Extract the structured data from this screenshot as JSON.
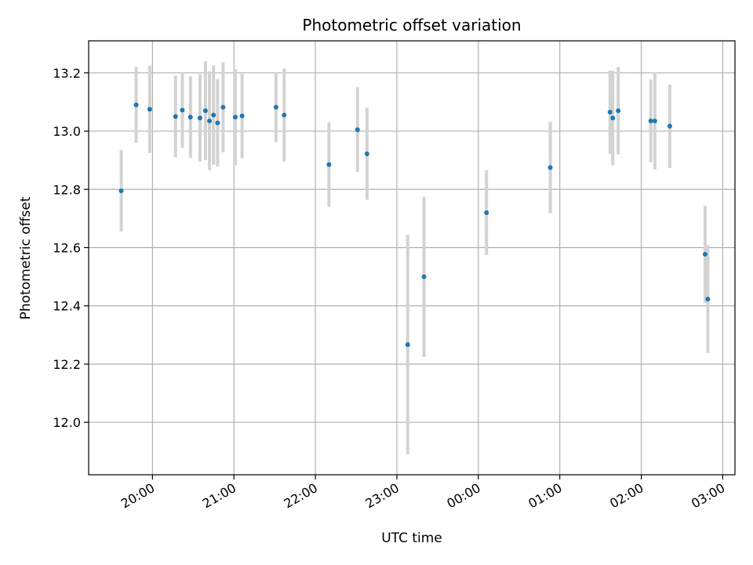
{
  "chart_data": {
    "type": "scatter",
    "title": "Photometric offset variation",
    "xlabel": "UTC time",
    "ylabel": "Photometric offset",
    "x_ticks": [
      "20:00",
      "21:00",
      "22:00",
      "23:00",
      "00:00",
      "01:00",
      "02:00",
      "03:00"
    ],
    "x_tick_hours": [
      20,
      21,
      22,
      23,
      24,
      25,
      26,
      27
    ],
    "xlim": [
      "19:13",
      "27:09"
    ],
    "y_ticks": [
      "12.0",
      "12.2",
      "12.4",
      "12.6",
      "12.8",
      "13.0",
      "13.2"
    ],
    "y_tick_values": [
      12.0,
      12.2,
      12.4,
      12.6,
      12.8,
      13.0,
      13.2
    ],
    "ylim": [
      11.82,
      13.31
    ],
    "grid": true,
    "marker_color": "#1f77b4",
    "errorbar_color": "#d3d3d3",
    "series": [
      {
        "x": [
          "19:37",
          "19:48",
          "19:58",
          "20:17",
          "20:22",
          "20:28",
          "20:35",
          "20:39",
          "20:42",
          "20:45",
          "20:48",
          "20:52",
          "21:01",
          "21:06",
          "21:31",
          "21:37",
          "22:10",
          "22:31",
          "22:38",
          "23:08",
          "23:20",
          "00:06",
          "00:53",
          "01:37",
          "01:39",
          "01:43",
          "02:07",
          "02:10",
          "02:21",
          "02:47",
          "02:49"
        ],
        "y": [
          12.795,
          13.09,
          13.075,
          13.05,
          13.072,
          13.048,
          13.045,
          13.07,
          13.035,
          13.055,
          13.028,
          13.082,
          13.048,
          13.052,
          13.082,
          13.055,
          12.885,
          13.005,
          12.922,
          12.267,
          12.5,
          12.72,
          12.875,
          13.065,
          13.045,
          13.07,
          13.035,
          13.035,
          13.017,
          12.577,
          12.423
        ],
        "yerr": [
          0.14,
          0.13,
          0.15,
          0.14,
          0.13,
          0.14,
          0.15,
          0.17,
          0.17,
          0.17,
          0.15,
          0.155,
          0.165,
          0.145,
          0.12,
          0.16,
          0.145,
          0.145,
          0.158,
          0.377,
          0.275,
          0.145,
          0.157,
          0.143,
          0.162,
          0.15,
          0.142,
          0.167,
          0.143,
          0.167,
          0.185
        ]
      }
    ]
  }
}
